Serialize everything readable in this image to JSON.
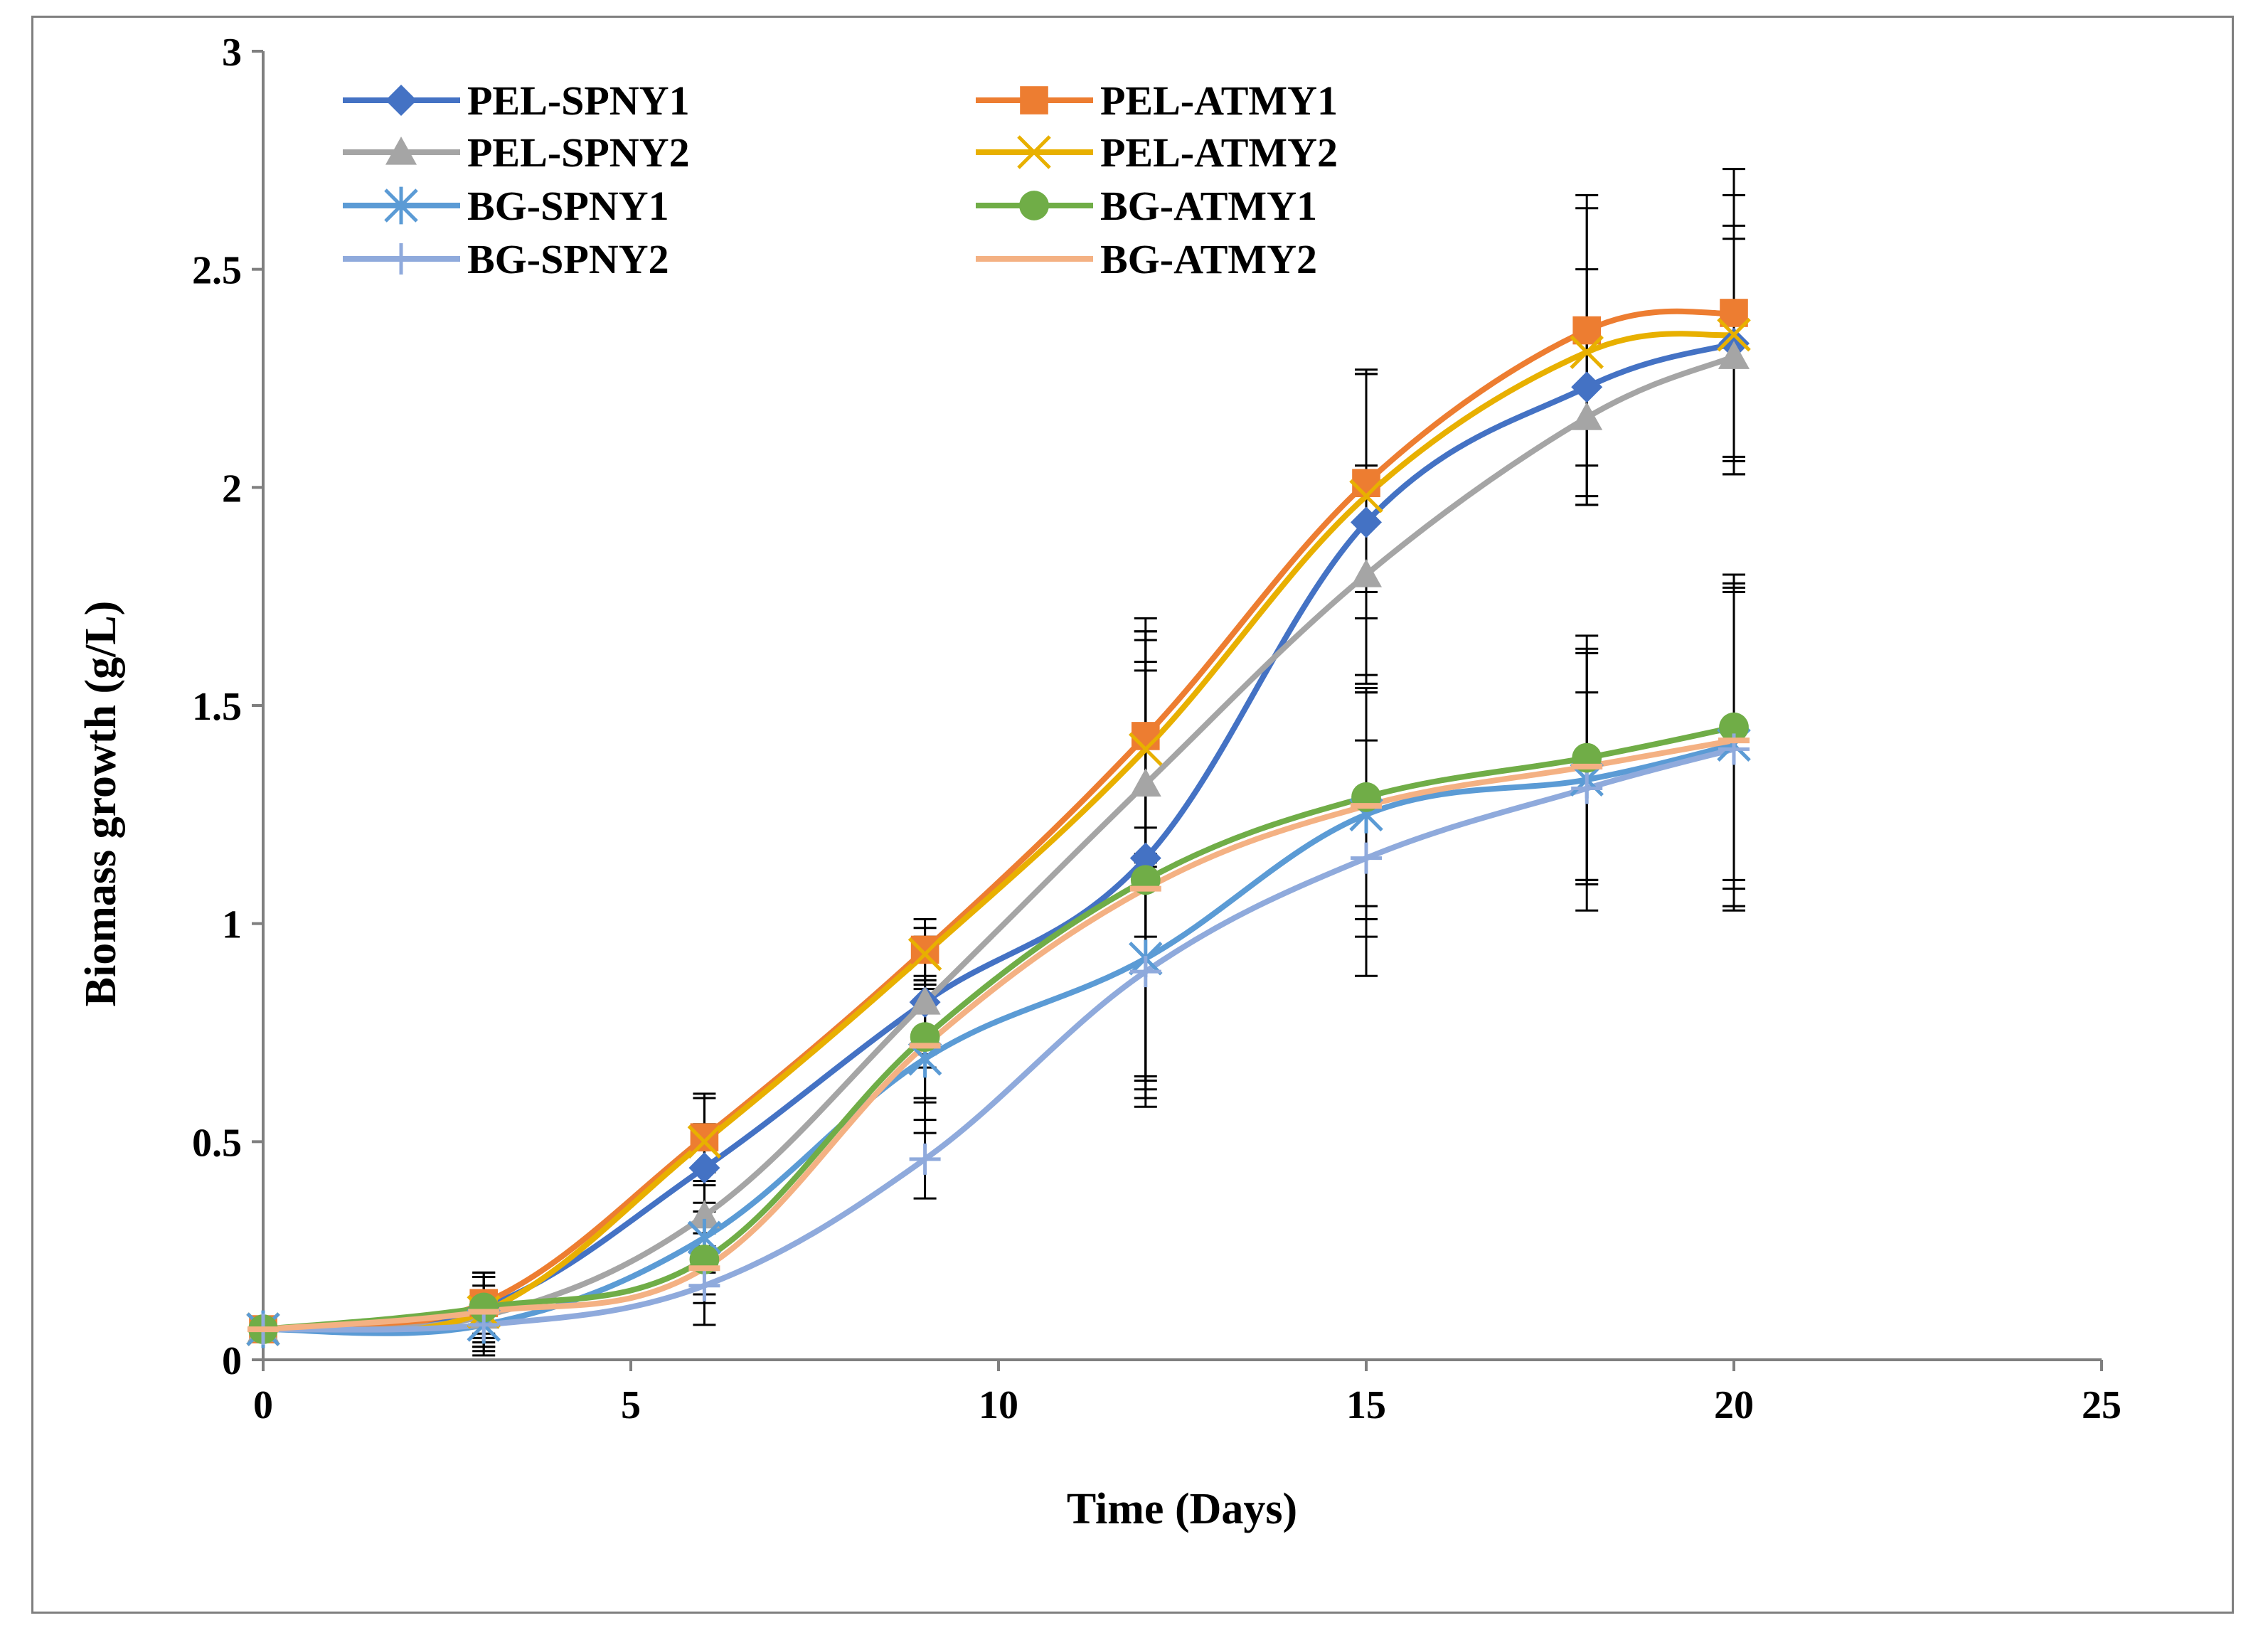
{
  "chart_data": {
    "type": "line",
    "title": "",
    "xlabel": "Time (Days)",
    "ylabel": "Biomass growth (g/L)",
    "xlim": [
      0,
      25
    ],
    "ylim": [
      0,
      3
    ],
    "xticks": [
      0,
      5,
      10,
      15,
      20,
      25
    ],
    "yticks": [
      0,
      0.5,
      1,
      1.5,
      2,
      2.5,
      3
    ],
    "xtick_labels": [
      "0",
      "5",
      "10",
      "15",
      "20",
      "25"
    ],
    "ytick_labels": [
      "0",
      "0.5",
      "1",
      "1.5",
      "2",
      "2.5",
      "3"
    ],
    "grid": false,
    "legend_position": "top-left",
    "x": [
      0,
      3,
      6,
      9,
      12,
      15,
      18,
      20
    ],
    "series": [
      {
        "name": "PEL-SPNY1",
        "color": "#4472C4",
        "marker": "diamond",
        "values": [
          0.07,
          0.12,
          0.44,
          0.82,
          1.15,
          1.92,
          2.23,
          2.33
        ],
        "errors": [
          0.01,
          0.08,
          0.1,
          0.12,
          0.5,
          0.35,
          0.27,
          0.27
        ]
      },
      {
        "name": "PEL-ATMY1",
        "color": "#ED7D31",
        "marker": "square",
        "values": [
          0.07,
          0.13,
          0.51,
          0.94,
          1.43,
          2.01,
          2.36,
          2.4
        ],
        "errors": [
          0.01,
          0.07,
          0.1,
          0.07,
          0.27,
          0.25,
          0.31,
          0.33
        ]
      },
      {
        "name": "PEL-SPNY2",
        "color": "#A5A5A5",
        "marker": "triangle",
        "values": [
          0.07,
          0.1,
          0.33,
          0.82,
          1.32,
          1.8,
          2.16,
          2.3
        ],
        "errors": [
          0.01,
          0.07,
          0.1,
          0.15,
          0.35,
          0.25,
          0.2,
          0.27
        ]
      },
      {
        "name": "PEL-ATMY2",
        "color": "#E8B000",
        "marker": "x",
        "values": [
          0.07,
          0.11,
          0.5,
          0.93,
          1.4,
          1.98,
          2.31,
          2.35
        ],
        "errors": [
          0.01,
          0.08,
          0.1,
          0.06,
          0.27,
          0.28,
          0.33,
          0.32
        ]
      },
      {
        "name": "BG-SPNY1",
        "color": "#5B9BD5",
        "marker": "asterisk",
        "values": [
          0.07,
          0.08,
          0.28,
          0.69,
          0.92,
          1.25,
          1.33,
          1.41
        ],
        "errors": [
          0.01,
          0.06,
          0.08,
          0.17,
          0.3,
          0.28,
          0.3,
          0.37
        ]
      },
      {
        "name": "BG-ATMY1",
        "color": "#70AD47",
        "marker": "circle",
        "values": [
          0.07,
          0.12,
          0.23,
          0.74,
          1.1,
          1.29,
          1.38,
          1.45
        ],
        "errors": [
          0.01,
          0.07,
          0.08,
          0.14,
          0.5,
          0.25,
          0.28,
          0.35
        ]
      },
      {
        "name": "BG-SPNY2",
        "color": "#8FAADC",
        "marker": "plus",
        "values": [
          0.07,
          0.08,
          0.17,
          0.46,
          0.89,
          1.15,
          1.31,
          1.4
        ],
        "errors": [
          0.01,
          0.07,
          0.09,
          0.09,
          0.25,
          0.27,
          0.22,
          0.37
        ]
      },
      {
        "name": "BG-ATMY2",
        "color": "#F4B183",
        "marker": "dash",
        "values": [
          0.07,
          0.11,
          0.21,
          0.72,
          1.08,
          1.27,
          1.36,
          1.42
        ],
        "errors": [
          0.01,
          0.08,
          0.08,
          0.13,
          0.5,
          0.26,
          0.26,
          0.34
        ]
      }
    ]
  }
}
